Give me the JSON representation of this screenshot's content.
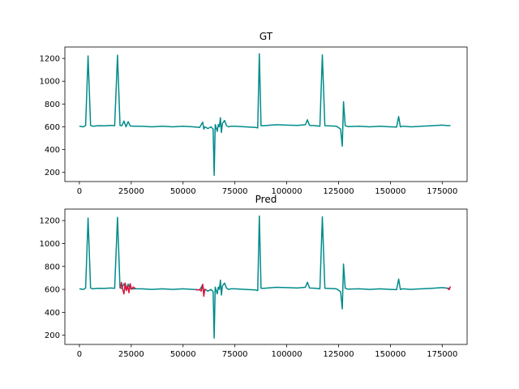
{
  "chart_data": [
    {
      "type": "line",
      "title": "GT",
      "xlim": [
        -7000,
        187000
      ],
      "ylim": [
        120,
        1300
      ],
      "xticks": [
        0,
        25000,
        50000,
        75000,
        100000,
        125000,
        150000,
        175000
      ],
      "yticks": [
        200,
        400,
        600,
        800,
        1000,
        1200
      ],
      "series": [
        {
          "color": "#008B8B",
          "x": [
            0,
            2000,
            3000,
            4200,
            5400,
            6500,
            9000,
            12000,
            15000,
            17000,
            18400,
            19600,
            20500,
            21500,
            22500,
            23500,
            24500,
            26000,
            30000,
            35000,
            40000,
            45000,
            50000,
            55000,
            58000,
            59500,
            60000,
            60500,
            62000,
            63500,
            64500,
            65000,
            65500,
            66500,
            67000,
            67500,
            68000,
            68500,
            69000,
            70000,
            71000,
            72000,
            73000,
            75000,
            80000,
            85000,
            86000,
            86800,
            87600,
            89000,
            95000,
            100000,
            105000,
            109000,
            110000,
            111000,
            114000,
            116000,
            117200,
            118400,
            120000,
            124000,
            126000,
            126800,
            127400,
            128200,
            129500,
            135000,
            140000,
            145000,
            150000,
            153000,
            154000,
            154800,
            156000,
            160000,
            165000,
            170000,
            175000,
            178000,
            179000
          ],
          "y": [
            605,
            600,
            612,
            1222,
            612,
            605,
            610,
            608,
            612,
            610,
            1228,
            612,
            610,
            650,
            600,
            645,
            608,
            605,
            605,
            600,
            605,
            600,
            605,
            600,
            595,
            640,
            580,
            600,
            585,
            600,
            580,
            175,
            620,
            560,
            620,
            600,
            680,
            550,
            630,
            655,
            610,
            600,
            605,
            605,
            600,
            595,
            590,
            1240,
            610,
            610,
            618,
            615,
            612,
            618,
            662,
            612,
            610,
            605,
            1232,
            610,
            608,
            605,
            580,
            430,
            820,
            610,
            602,
            605,
            600,
            605,
            600,
            598,
            690,
            600,
            605,
            600,
            605,
            610,
            615,
            610,
            612
          ]
        }
      ]
    },
    {
      "type": "line",
      "title": "Pred",
      "xlim": [
        -7000,
        187000
      ],
      "ylim": [
        120,
        1300
      ],
      "xticks": [
        0,
        25000,
        50000,
        75000,
        100000,
        125000,
        150000,
        175000
      ],
      "yticks": [
        200,
        400,
        600,
        800,
        1000,
        1200
      ],
      "series": [
        {
          "color": "#008B8B",
          "x": [
            0,
            2000,
            3000,
            4200,
            5400,
            6500,
            9000,
            12000,
            15000,
            17000,
            18400,
            19600,
            20500,
            21500,
            22500,
            23500,
            24500,
            26000,
            30000,
            35000,
            40000,
            45000,
            50000,
            55000,
            58000,
            59500,
            60000,
            60500,
            62000,
            63500,
            64500,
            65000,
            65500,
            66500,
            67000,
            67500,
            68000,
            68500,
            69000,
            70000,
            71000,
            72000,
            73000,
            75000,
            80000,
            85000,
            86000,
            86800,
            87600,
            89000,
            95000,
            100000,
            105000,
            109000,
            110000,
            111000,
            114000,
            116000,
            117200,
            118400,
            120000,
            124000,
            126000,
            126800,
            127400,
            128200,
            129500,
            135000,
            140000,
            145000,
            150000,
            153000,
            154000,
            154800,
            156000,
            160000,
            165000,
            170000,
            175000,
            178000,
            179000
          ],
          "y": [
            605,
            600,
            612,
            1222,
            612,
            605,
            610,
            608,
            612,
            610,
            1228,
            612,
            610,
            650,
            600,
            645,
            608,
            605,
            605,
            600,
            605,
            600,
            605,
            600,
            595,
            640,
            580,
            600,
            585,
            600,
            580,
            175,
            620,
            560,
            620,
            600,
            680,
            550,
            630,
            655,
            610,
            600,
            605,
            605,
            600,
            595,
            590,
            1240,
            610,
            610,
            618,
            615,
            612,
            618,
            662,
            612,
            610,
            605,
            1232,
            610,
            608,
            605,
            580,
            430,
            820,
            610,
            602,
            605,
            600,
            605,
            600,
            598,
            690,
            600,
            605,
            600,
            605,
            610,
            615,
            610,
            612
          ]
        },
        {
          "color": "#DC143C",
          "x": [
            19800,
            20300,
            20900,
            21500,
            22100,
            22700,
            23300,
            23900,
            24500,
            25200,
            26000,
            27000
          ],
          "y": [
            610,
            660,
            600,
            560,
            655,
            590,
            630,
            570,
            650,
            600,
            620,
            608
          ]
        },
        {
          "color": "#DC143C",
          "x": [
            56000,
            57000,
            58000,
            58800,
            59500,
            60000,
            60500,
            61200
          ],
          "y": [
            600,
            595,
            598,
            585,
            645,
            540,
            600,
            598
          ]
        },
        {
          "color": "#DC143C",
          "x": [
            177500,
            178300,
            179000
          ],
          "y": [
            612,
            598,
            625
          ]
        }
      ]
    }
  ]
}
